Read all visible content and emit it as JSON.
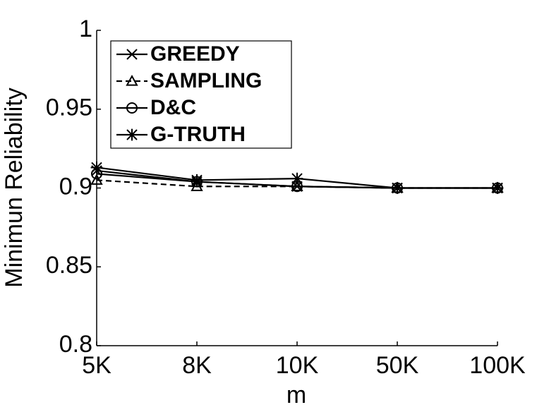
{
  "chart_data": {
    "type": "line",
    "x_label": "m",
    "y_label": "Minimun Reliability",
    "categories": [
      "5K",
      "8K",
      "10K",
      "50K",
      "100K"
    ],
    "series": [
      {
        "name": "GREEDY",
        "color": "#000000",
        "marker": "x",
        "dash": false,
        "values": [
          0.911,
          0.904,
          0.901,
          0.9,
          0.9
        ]
      },
      {
        "name": "SAMPLING",
        "color": "#000000",
        "marker": "triangle",
        "dash": true,
        "values": [
          0.905,
          0.901,
          0.901,
          0.9,
          0.9
        ]
      },
      {
        "name": "D&C",
        "color": "#000000",
        "marker": "circle",
        "dash": false,
        "values": [
          0.909,
          0.904,
          0.901,
          0.9,
          0.9
        ]
      },
      {
        "name": "G-TRUTH",
        "color": "#000000",
        "marker": "star",
        "dash": false,
        "values": [
          0.913,
          0.905,
          0.906,
          0.9,
          0.9
        ]
      }
    ],
    "ylim": [
      0.8,
      1
    ],
    "yticks": [
      0.8,
      0.85,
      0.9,
      0.95,
      1
    ],
    "legend": "upper-left",
    "grid": false
  }
}
